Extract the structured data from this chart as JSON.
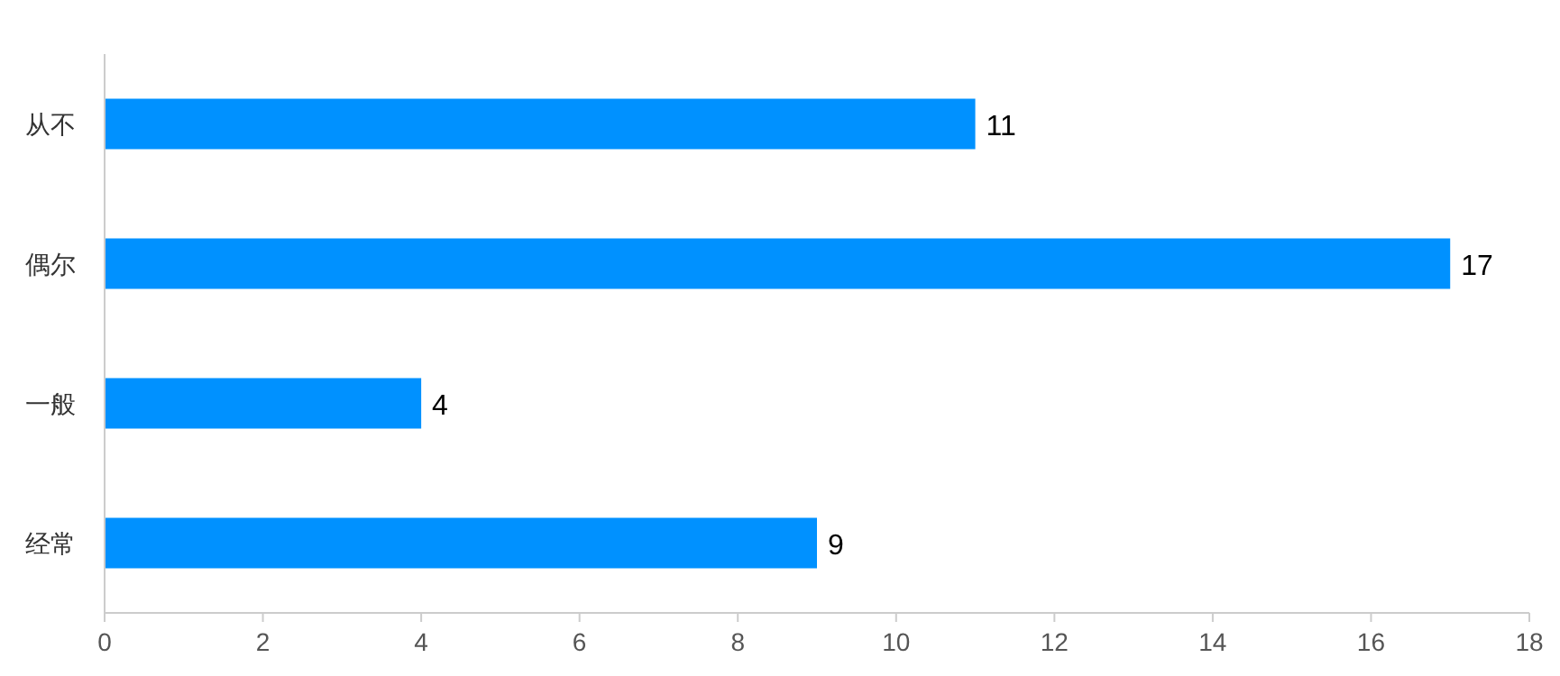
{
  "chart_data": {
    "type": "bar",
    "orientation": "horizontal",
    "categories": [
      "从不",
      "偶尔",
      "一般",
      "经常"
    ],
    "values": [
      11,
      17,
      4,
      9
    ],
    "color": "#0091ff",
    "xlim": [
      0,
      18
    ],
    "xticks": [
      0,
      2,
      4,
      6,
      8,
      10,
      12,
      14,
      16,
      18
    ],
    "grid": false,
    "data_labels": true
  }
}
